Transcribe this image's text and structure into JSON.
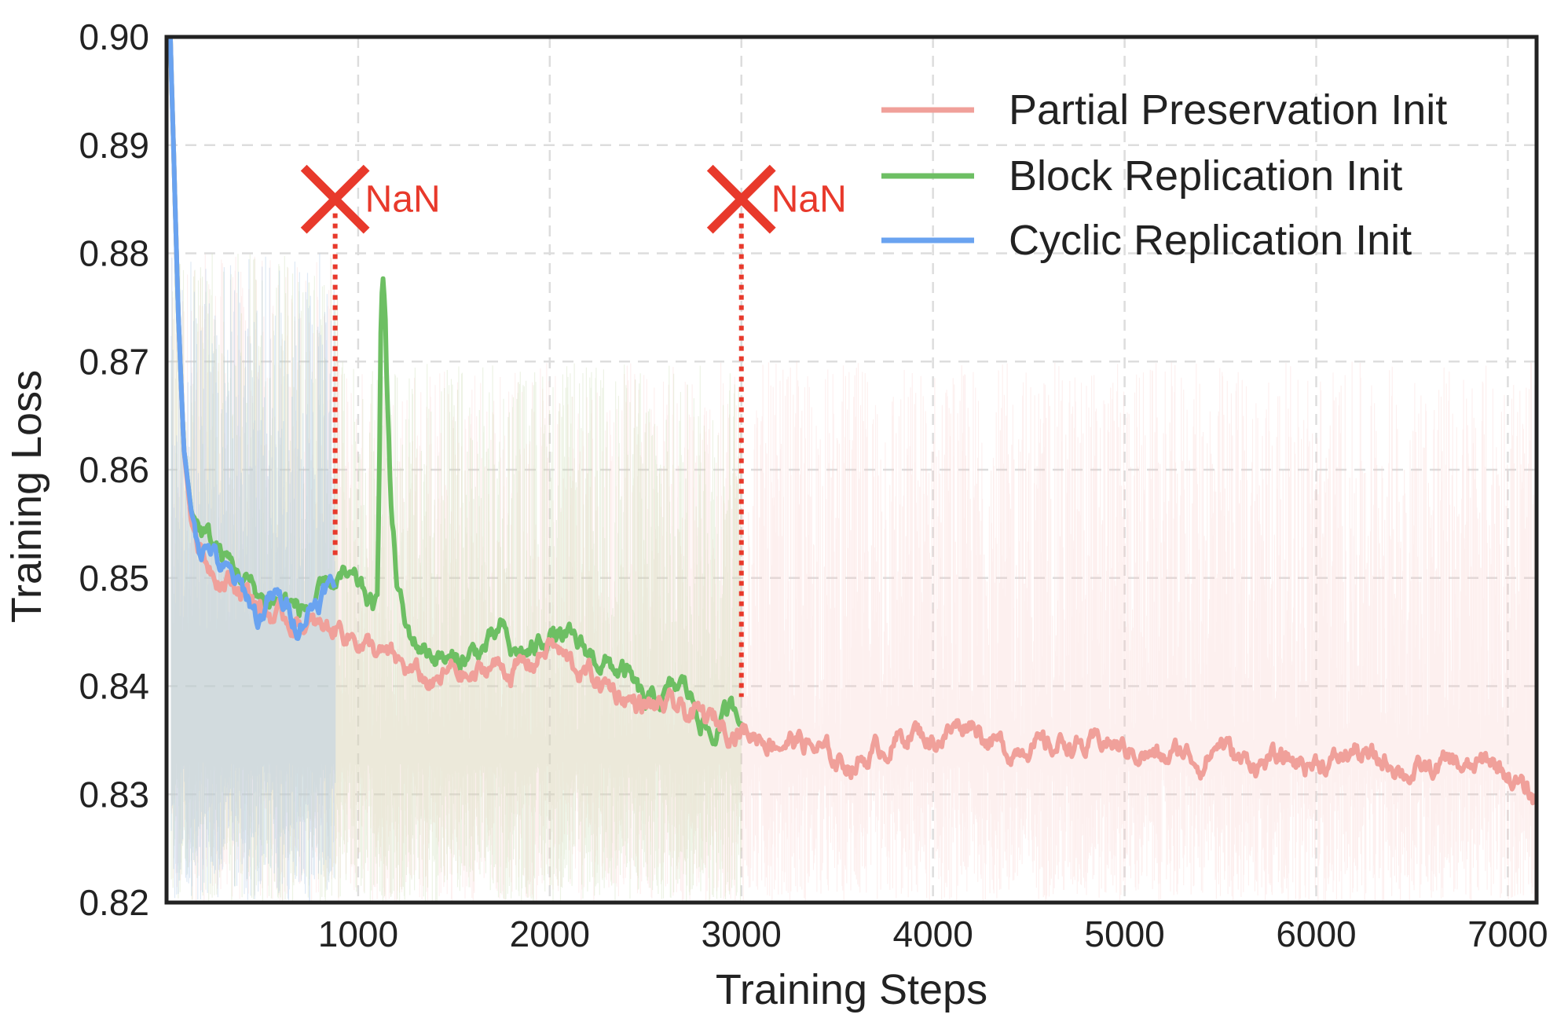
{
  "chart_data": {
    "type": "line",
    "title": "",
    "xlabel": "Training Steps",
    "ylabel": "Training Loss",
    "xlim": [
      0,
      7150
    ],
    "ylim": [
      0.82,
      0.9
    ],
    "xticks": [
      1000,
      2000,
      3000,
      4000,
      5000,
      6000,
      7000
    ],
    "xtick_labels": [
      "1000",
      "2000",
      "3000",
      "4000",
      "5000",
      "6000",
      "7000"
    ],
    "yticks": [
      0.82,
      0.83,
      0.84,
      0.85,
      0.86,
      0.87,
      0.88,
      0.89,
      0.9
    ],
    "ytick_labels": [
      "0.82",
      "0.83",
      "0.84",
      "0.85",
      "0.86",
      "0.87",
      "0.88",
      "0.89",
      "0.90"
    ],
    "grid": true,
    "legend_position": "top-right",
    "series": [
      {
        "name": "Partial Preservation Init",
        "color": "#f0a09a",
        "end_step": 7150,
        "x": [
          20,
          60,
          90,
          130,
          200,
          300,
          400,
          500,
          600,
          700,
          800,
          900,
          1000,
          1100,
          1200,
          1300,
          1400,
          1500,
          1600,
          1700,
          1800,
          1900,
          2000,
          2100,
          2200,
          2300,
          2400,
          2500,
          2600,
          2700,
          2800,
          2900,
          3000,
          3100,
          3200,
          3300,
          3400,
          3500,
          3600,
          3700,
          3800,
          3900,
          4000,
          4100,
          4200,
          4300,
          4400,
          4500,
          4600,
          4700,
          4800,
          4900,
          5000,
          5100,
          5200,
          5300,
          5400,
          5500,
          5600,
          5700,
          5800,
          5900,
          6000,
          6100,
          6200,
          6300,
          6400,
          6500,
          6600,
          6700,
          6800,
          6900,
          7000,
          7100,
          7150
        ],
        "y": [
          0.9,
          0.875,
          0.862,
          0.855,
          0.852,
          0.85,
          0.849,
          0.847,
          0.846,
          0.846,
          0.845,
          0.8455,
          0.8445,
          0.843,
          0.842,
          0.841,
          0.84,
          0.8415,
          0.8405,
          0.842,
          0.8415,
          0.842,
          0.844,
          0.842,
          0.841,
          0.84,
          0.839,
          0.838,
          0.838,
          0.8375,
          0.837,
          0.8365,
          0.836,
          0.8355,
          0.835,
          0.835,
          0.834,
          0.833,
          0.833,
          0.834,
          0.835,
          0.836,
          0.835,
          0.836,
          0.837,
          0.835,
          0.834,
          0.835,
          0.834,
          0.835,
          0.834,
          0.835,
          0.834,
          0.834,
          0.833,
          0.834,
          0.833,
          0.835,
          0.833,
          0.833,
          0.833,
          0.833,
          0.833,
          0.833,
          0.834,
          0.833,
          0.833,
          0.832,
          0.832,
          0.833,
          0.832,
          0.833,
          0.832,
          0.83,
          0.8295
        ]
      },
      {
        "name": "Block Replication Init",
        "color": "#6dbf63",
        "end_step": 3000,
        "x": [
          20,
          60,
          90,
          130,
          200,
          300,
          400,
          500,
          600,
          700,
          800,
          900,
          1000,
          1050,
          1080,
          1100,
          1110,
          1120,
          1130,
          1140,
          1150,
          1170,
          1200,
          1250,
          1300,
          1400,
          1500,
          1600,
          1700,
          1750,
          1800,
          1900,
          2000,
          2100,
          2200,
          2300,
          2400,
          2500,
          2600,
          2700,
          2800,
          2850,
          2900,
          3000
        ],
        "y": [
          0.9,
          0.875,
          0.862,
          0.856,
          0.854,
          0.852,
          0.85,
          0.848,
          0.848,
          0.847,
          0.848,
          0.85,
          0.849,
          0.848,
          0.847,
          0.847,
          0.858,
          0.877,
          0.878,
          0.876,
          0.868,
          0.857,
          0.85,
          0.845,
          0.844,
          0.843,
          0.842,
          0.843,
          0.844,
          0.845,
          0.843,
          0.843,
          0.845,
          0.844,
          0.843,
          0.842,
          0.841,
          0.838,
          0.839,
          0.84,
          0.837,
          0.835,
          0.837,
          0.838
        ]
      },
      {
        "name": "Cyclic Replication Init",
        "color": "#6aa3f0",
        "end_step": 880,
        "x": [
          20,
          60,
          90,
          130,
          180,
          230,
          280,
          330,
          380,
          430,
          480,
          530,
          580,
          630,
          680,
          730,
          780,
          830,
          880
        ],
        "y": [
          0.9,
          0.875,
          0.862,
          0.856,
          0.853,
          0.853,
          0.851,
          0.85,
          0.849,
          0.848,
          0.846,
          0.848,
          0.848,
          0.847,
          0.846,
          0.847,
          0.848,
          0.849,
          0.849
        ]
      }
    ],
    "annotations": [
      {
        "type": "nan_marker",
        "label": "NaN",
        "step": 880,
        "x_loss": 0.885,
        "line_to_loss": 0.852,
        "color": "#e8392b"
      },
      {
        "type": "nan_marker",
        "label": "NaN",
        "step": 3000,
        "x_loss": 0.885,
        "line_to_loss": 0.839,
        "color": "#e8392b"
      }
    ]
  }
}
